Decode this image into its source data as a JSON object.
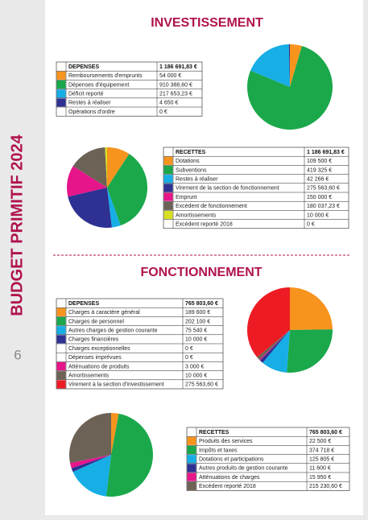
{
  "sidebar": {
    "title": "BUDGET PRIMITIF 2024",
    "page_number": "6"
  },
  "investissement": {
    "title": "INVESTISSEMENT",
    "depenses": {
      "header": "DEPENSES",
      "total_label": "1 186 691,83 €",
      "rows": [
        {
          "label": "Remboursements d'emprunts",
          "value": 54000,
          "value_label": "54 000 €",
          "color": "#f7941d"
        },
        {
          "label": "Dépenses d'équipement",
          "value": 910388.6,
          "value_label": "910 388,60 €",
          "color": "#1aa84b"
        },
        {
          "label": "Déficit reporté",
          "value": 217653.23,
          "value_label": "217 653,23 €",
          "color": "#17aee6"
        },
        {
          "label": "Restes à réaliser",
          "value": 4650,
          "value_label": "4 650 €",
          "color": "#2e3192"
        },
        {
          "label": "Opérations d'ordre",
          "value": 0,
          "value_label": "0 €",
          "color": "#ffffff"
        }
      ]
    },
    "recettes": {
      "header": "RECETTES",
      "total_label": "1 186 691,83 €",
      "rows": [
        {
          "label": "Dotations",
          "value": 109500,
          "value_label": "109 500 €",
          "color": "#f7941d"
        },
        {
          "label": "Subventions",
          "value": 419325,
          "value_label": "419 325 €",
          "color": "#1aa84b"
        },
        {
          "label": "Restes à réaliser",
          "value": 42266,
          "value_label": "42 266 €",
          "color": "#17aee6"
        },
        {
          "label": "Virement de la section de fonctionnement",
          "value": 275563.6,
          "value_label": "275 563,60 €",
          "color": "#2e3192"
        },
        {
          "label": "Emprunt",
          "value": 150000,
          "value_label": "150 000 €",
          "color": "#e6158a"
        },
        {
          "label": "Excédent de fonctionnement",
          "value": 180037.23,
          "value_label": "180 037,23 €",
          "color": "#6d6256"
        },
        {
          "label": "Amortissements",
          "value": 10000,
          "value_label": "10 000 €",
          "color": "#d7df23"
        },
        {
          "label": "Excédent reporté 2018",
          "value": 0,
          "value_label": "0 €",
          "color": "#ffffff"
        }
      ]
    }
  },
  "fonctionnement": {
    "title": "FONCTIONNEMENT",
    "depenses": {
      "header": "DEPENSES",
      "total_label": "765 803,60 €",
      "rows": [
        {
          "label": "Charges à caractère général",
          "value": 189600,
          "value_label": "189 600 €",
          "color": "#f7941d"
        },
        {
          "label": "Charges de personnel",
          "value": 202100,
          "value_label": "202 100 €",
          "color": "#1aa84b"
        },
        {
          "label": "Autres charges de gestion courante",
          "value": 75540,
          "value_label": "75 540 €",
          "color": "#17aee6"
        },
        {
          "label": "Charges financières",
          "value": 10000,
          "value_label": "10 000 €",
          "color": "#2e3192"
        },
        {
          "label": "Charges exceptionnelles",
          "value": 0,
          "value_label": "0 €",
          "color": "#ffffff"
        },
        {
          "label": "Dépenses imprévues",
          "value": 0,
          "value_label": "0 €",
          "color": "#ffffff"
        },
        {
          "label": "Atténuations de produits",
          "value": 3000,
          "value_label": "3 000 €",
          "color": "#e6158a"
        },
        {
          "label": "Amortissements",
          "value": 10000,
          "value_label": "10 000 €",
          "color": "#6d6256"
        },
        {
          "label": "Virement à la section d'investissement",
          "value": 275563.6,
          "value_label": "275 563,60 €",
          "color": "#ed1c24"
        }
      ]
    },
    "recettes": {
      "header": "RECETTES",
      "total_label": "765 803,60 €",
      "rows": [
        {
          "label": "Produits des services",
          "value": 22500,
          "value_label": "22 500 €",
          "color": "#f7941d"
        },
        {
          "label": "Impôts et taxes",
          "value": 374718,
          "value_label": "374 718 €",
          "color": "#1aa84b"
        },
        {
          "label": "Dotations et participations",
          "value": 125805,
          "value_label": "125 805 €",
          "color": "#17aee6"
        },
        {
          "label": "Autres produits de gestion courante",
          "value": 11600,
          "value_label": "11 600 €",
          "color": "#2e3192"
        },
        {
          "label": "Atténuations de charges",
          "value": 15950,
          "value_label": "15 950 €",
          "color": "#e6158a"
        },
        {
          "label": "Excédent reporté 2018",
          "value": 215230.6,
          "value_label": "215 230,60 €",
          "color": "#6d6256"
        }
      ]
    }
  }
}
